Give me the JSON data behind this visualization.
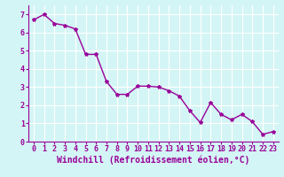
{
  "x": [
    0,
    1,
    2,
    3,
    4,
    5,
    6,
    7,
    8,
    9,
    10,
    11,
    12,
    13,
    14,
    15,
    16,
    17,
    18,
    19,
    20,
    21,
    22,
    23
  ],
  "y": [
    6.7,
    7.0,
    6.5,
    6.4,
    6.2,
    4.8,
    4.8,
    3.3,
    2.6,
    2.6,
    3.05,
    3.05,
    3.0,
    2.8,
    2.5,
    1.7,
    1.05,
    2.15,
    1.5,
    1.2,
    1.5,
    1.1,
    0.4,
    0.55
  ],
  "line_color": "#990099",
  "marker": "*",
  "xlabel": "Windchill (Refroidissement éolien,°C)",
  "ylabel": "",
  "xlim": [
    -0.5,
    23.5
  ],
  "ylim": [
    0,
    7.5
  ],
  "yticks": [
    0,
    1,
    2,
    3,
    4,
    5,
    6,
    7
  ],
  "xticks": [
    0,
    1,
    2,
    3,
    4,
    5,
    6,
    7,
    8,
    9,
    10,
    11,
    12,
    13,
    14,
    15,
    16,
    17,
    18,
    19,
    20,
    21,
    22,
    23
  ],
  "bg_color": "#d4f5f5",
  "grid_color": "#ffffff",
  "tick_label_color": "#990099",
  "axis_label_color": "#990099",
  "font_size_tick": 6.0,
  "font_size_label": 7.0,
  "line_width": 1.0,
  "marker_size": 3
}
